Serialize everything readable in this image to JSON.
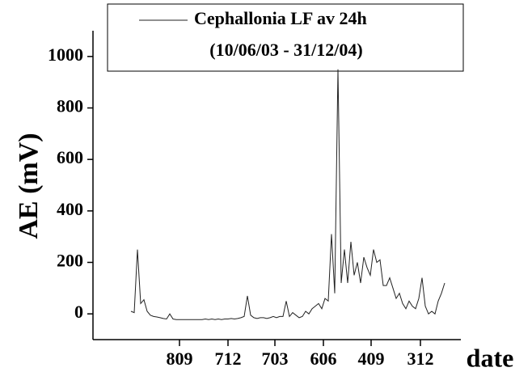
{
  "chart_data": {
    "type": "line",
    "legend_title": "(10/06/03 - 31/12/04)",
    "y_label": "AE (mV)",
    "x_label": "date",
    "legend": "top",
    "series": [
      {
        "name": "Cephallonia LF av 24h",
        "color": "#222222",
        "x": [
          0,
          4,
          8,
          12,
          16,
          20,
          24,
          28,
          32,
          36,
          40,
          44,
          48,
          52,
          56,
          60,
          64,
          68,
          72,
          76,
          80,
          84,
          88,
          92,
          96,
          100,
          104,
          108,
          112,
          116,
          120,
          124,
          128,
          132,
          136,
          140,
          144,
          148,
          152,
          156,
          160,
          164,
          168,
          172,
          176,
          180,
          184,
          188,
          192,
          196,
          200,
          204,
          208,
          212,
          216,
          220,
          224,
          228,
          232,
          236,
          240,
          244,
          248,
          252,
          256,
          260,
          264,
          268,
          272,
          276,
          280,
          284,
          288,
          292,
          296,
          300,
          304,
          308,
          312,
          316,
          320,
          324,
          328,
          332,
          336,
          340,
          344,
          348,
          352,
          356,
          360,
          364,
          368,
          372,
          376,
          380,
          384,
          388
        ],
        "values": [
          10,
          5,
          250,
          40,
          55,
          10,
          -5,
          -10,
          -12,
          -15,
          -18,
          -20,
          0,
          -20,
          -22,
          -22,
          -22,
          -22,
          -22,
          -22,
          -22,
          -22,
          -22,
          -20,
          -22,
          -20,
          -22,
          -20,
          -22,
          -20,
          -20,
          -18,
          -20,
          -18,
          -15,
          -10,
          70,
          -5,
          -15,
          -18,
          -15,
          -15,
          -18,
          -15,
          -10,
          -15,
          -10,
          -10,
          50,
          -10,
          5,
          -5,
          -15,
          -10,
          10,
          0,
          20,
          30,
          40,
          20,
          60,
          50,
          310,
          80,
          950,
          120,
          250,
          120,
          280,
          150,
          200,
          120,
          220,
          180,
          150,
          250,
          200,
          210,
          110,
          110,
          140,
          100,
          60,
          80,
          40,
          20,
          50,
          30,
          20,
          60,
          140,
          30,
          0,
          10,
          0,
          50,
          80,
          120
        ]
      }
    ],
    "xlim": [
      -47,
      408
    ],
    "xticks": [
      {
        "value": 60,
        "label": "809"
      },
      {
        "value": 120,
        "label": "712"
      },
      {
        "value": 178,
        "label": "703"
      },
      {
        "value": 238,
        "label": "606"
      },
      {
        "value": 297,
        "label": "409"
      },
      {
        "value": 358,
        "label": "312"
      }
    ],
    "ylim": [
      -100,
      1100
    ],
    "yticks": [
      0,
      200,
      400,
      600,
      800,
      1000
    ]
  }
}
